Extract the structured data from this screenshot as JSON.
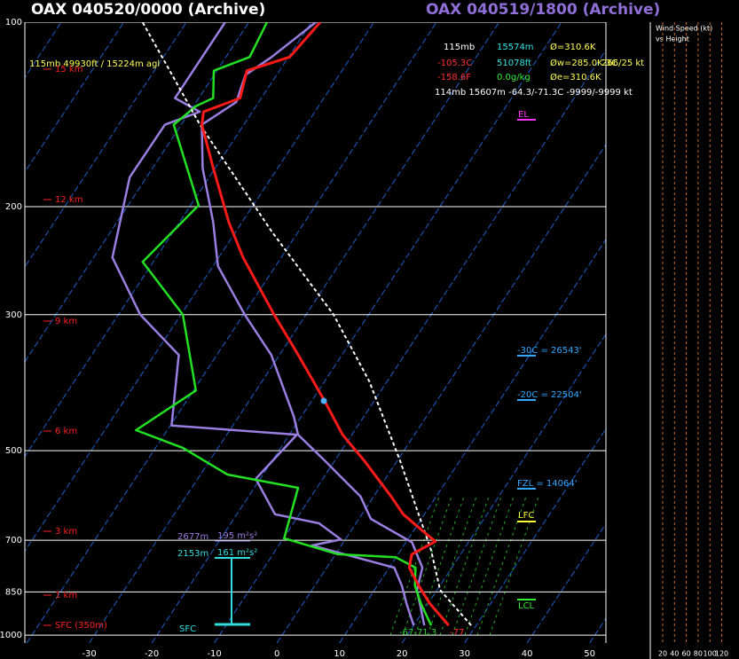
{
  "chart_data": {
    "type": "skewt",
    "title": "OAX  040520/0000  (Archive)",
    "title2": "OAX  040519/1800  (Archive)",
    "xlim": [
      -40.3,
      52.6
    ],
    "xticks": [
      -30,
      -20,
      -10,
      0,
      10,
      20,
      30,
      40,
      50
    ],
    "ylim": [
      1030,
      100
    ],
    "yticks": [
      100,
      200,
      300,
      500,
      700,
      850,
      1000
    ],
    "log_y": true,
    "series": [
      {
        "color": "#9a7ee0",
        "width": 2.5,
        "dash": false,
        "y": [
          964,
          887,
          830,
          776,
          714,
          698,
          657,
          635,
          556,
          471,
          455,
          349,
          300,
          242,
          179,
          147,
          140,
          133,
          100
        ],
        "x": [
          20.0,
          16.5,
          13.9,
          10.8,
          -4.7,
          -0.7,
          -5.9,
          -13.9,
          -20.7,
          -18.8,
          -39.8,
          -46.1,
          -56.5,
          -67.0,
          -72.7,
          -72.6,
          -68.4,
          -73.8,
          -73.8
        ]
      },
      {
        "color": "#9a7ee0",
        "width": 2.5,
        "dash": false,
        "y": [
          964,
          844,
          776,
          706,
          646,
          594,
          520,
          471,
          440,
          349,
          300,
          250,
          212,
          173,
          147,
          135,
          122,
          114,
          100
        ],
        "x": [
          21.7,
          16.8,
          15.3,
          11.0,
          1.9,
          -2.1,
          -11.5,
          -18.6,
          -21.2,
          -31.3,
          -39.8,
          -49.2,
          -54.6,
          -62.0,
          -66.7,
          -63.6,
          -65.0,
          -62.7,
          -59.3
        ]
      },
      {
        "color": "#22e022",
        "width": 2.5,
        "dash": false,
        "y": [
          964,
          887,
          830,
          776,
          746,
          738,
          695,
          575,
          547,
          495,
          463,
          399,
          300,
          246,
          199,
          147,
          137,
          133,
          120,
          114,
          100
        ],
        "x": [
          22.8,
          18.8,
          16.0,
          14.2,
          9.9,
          0.4,
          -9.9,
          -13.0,
          -25.7,
          -35.6,
          -45.0,
          -39.6,
          -49.7,
          -61.7,
          -58.7,
          -71.2,
          -69.6,
          -67.7,
          -70.5,
          -66.2,
          -67.1
        ]
      },
      {
        "color": "#ffffff",
        "width": 2,
        "dash": true,
        "y": [
          964,
          844,
          726,
          520,
          385,
          300,
          219,
          147,
          100
        ],
        "x": [
          29.2,
          20.5,
          14.8,
          0.5,
          -12.9,
          -25.6,
          -44.4,
          -67.0,
          -87.0
        ]
      },
      {
        "color": "#ff1a1a",
        "width": 3,
        "dash": false,
        "y": [
          964,
          887,
          830,
          776,
          738,
          703,
          679,
          635,
          594,
          520,
          471,
          415,
          349,
          300,
          242,
          212,
          173,
          147,
          140,
          133,
          120,
          114,
          100
        ],
        "x": [
          25.6,
          20.2,
          16.6,
          13.2,
          12.2,
          14.6,
          11.8,
          6.6,
          2.8,
          -5.2,
          -11.5,
          -17.9,
          -27.0,
          -35.1,
          -46.1,
          -52.1,
          -60.3,
          -66.7,
          -67.8,
          -63.4,
          -65.2,
          -59.8,
          -58.6
        ]
      }
    ],
    "height_labels": [
      "15 km",
      "12 km",
      "9 km",
      "6 km",
      "3 km",
      "1 km",
      "SFC (350m)"
    ],
    "cursor_label": "115mb  49930ft / 15224m agl",
    "readout": [
      [
        "115mb",
        "15574m",
        "Ø=310.6K"
      ],
      [
        "-105.3C",
        "51078ft",
        "Øw=285.0K 3C",
        "266/25 kt"
      ],
      [
        "-158.6F",
        "0.0g/kg",
        "Øe=310.6K"
      ],
      [
        "114mb 15607m -64.3/-71.3C -9999/-9999 kt"
      ]
    ],
    "annotations": {
      "el": "EL",
      "m30c": "-30C = 26543'",
      "m20c": "-20C = 22504'",
      "fzl": "FZL = 14064'",
      "lfc": "LFC",
      "lcl": "LCL"
    },
    "helicity": [
      {
        "height": "2677m",
        "value": "195 m²s²"
      },
      {
        "height": "2153m",
        "value": "161 m²s²"
      }
    ],
    "helicity_base": "SFC",
    "surface_labels": [
      "-67-71.3",
      "-77"
    ],
    "wind_panel": {
      "title": "Wind Speed (kt)",
      "subtitle": "vs Height",
      "ticks": [
        20,
        40,
        60,
        80,
        100,
        120
      ]
    }
  }
}
